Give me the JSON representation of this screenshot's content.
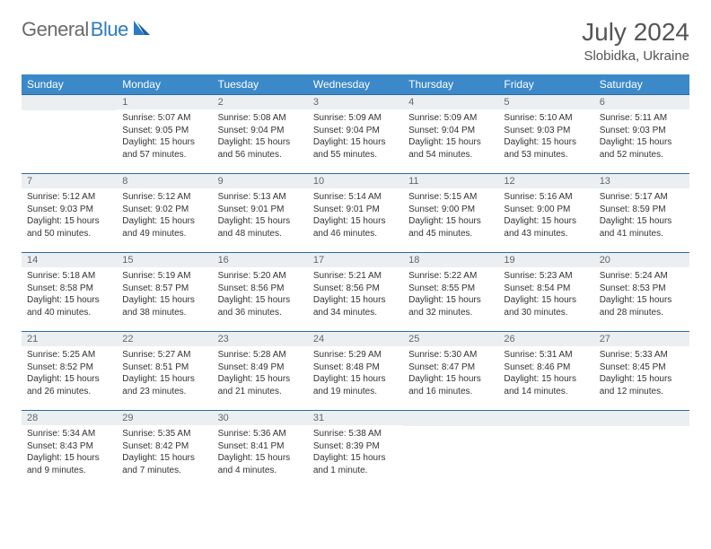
{
  "brand": {
    "part1": "General",
    "part2": "Blue"
  },
  "title": "July 2024",
  "location": "Slobidka, Ukraine",
  "colors": {
    "header_bg": "#3b89c9",
    "header_text": "#ffffff",
    "daybar_bg": "#eceff2",
    "daybar_text": "#666666",
    "border": "#2b6aa5",
    "logo_gray": "#6b6b6b",
    "logo_blue": "#2b7cc4"
  },
  "dayHeaders": [
    "Sunday",
    "Monday",
    "Tuesday",
    "Wednesday",
    "Thursday",
    "Friday",
    "Saturday"
  ],
  "weeks": [
    [
      {
        "n": "",
        "sr": "",
        "ss": "",
        "d1": "",
        "d2": ""
      },
      {
        "n": "1",
        "sr": "Sunrise: 5:07 AM",
        "ss": "Sunset: 9:05 PM",
        "d1": "Daylight: 15 hours",
        "d2": "and 57 minutes."
      },
      {
        "n": "2",
        "sr": "Sunrise: 5:08 AM",
        "ss": "Sunset: 9:04 PM",
        "d1": "Daylight: 15 hours",
        "d2": "and 56 minutes."
      },
      {
        "n": "3",
        "sr": "Sunrise: 5:09 AM",
        "ss": "Sunset: 9:04 PM",
        "d1": "Daylight: 15 hours",
        "d2": "and 55 minutes."
      },
      {
        "n": "4",
        "sr": "Sunrise: 5:09 AM",
        "ss": "Sunset: 9:04 PM",
        "d1": "Daylight: 15 hours",
        "d2": "and 54 minutes."
      },
      {
        "n": "5",
        "sr": "Sunrise: 5:10 AM",
        "ss": "Sunset: 9:03 PM",
        "d1": "Daylight: 15 hours",
        "d2": "and 53 minutes."
      },
      {
        "n": "6",
        "sr": "Sunrise: 5:11 AM",
        "ss": "Sunset: 9:03 PM",
        "d1": "Daylight: 15 hours",
        "d2": "and 52 minutes."
      }
    ],
    [
      {
        "n": "7",
        "sr": "Sunrise: 5:12 AM",
        "ss": "Sunset: 9:03 PM",
        "d1": "Daylight: 15 hours",
        "d2": "and 50 minutes."
      },
      {
        "n": "8",
        "sr": "Sunrise: 5:12 AM",
        "ss": "Sunset: 9:02 PM",
        "d1": "Daylight: 15 hours",
        "d2": "and 49 minutes."
      },
      {
        "n": "9",
        "sr": "Sunrise: 5:13 AM",
        "ss": "Sunset: 9:01 PM",
        "d1": "Daylight: 15 hours",
        "d2": "and 48 minutes."
      },
      {
        "n": "10",
        "sr": "Sunrise: 5:14 AM",
        "ss": "Sunset: 9:01 PM",
        "d1": "Daylight: 15 hours",
        "d2": "and 46 minutes."
      },
      {
        "n": "11",
        "sr": "Sunrise: 5:15 AM",
        "ss": "Sunset: 9:00 PM",
        "d1": "Daylight: 15 hours",
        "d2": "and 45 minutes."
      },
      {
        "n": "12",
        "sr": "Sunrise: 5:16 AM",
        "ss": "Sunset: 9:00 PM",
        "d1": "Daylight: 15 hours",
        "d2": "and 43 minutes."
      },
      {
        "n": "13",
        "sr": "Sunrise: 5:17 AM",
        "ss": "Sunset: 8:59 PM",
        "d1": "Daylight: 15 hours",
        "d2": "and 41 minutes."
      }
    ],
    [
      {
        "n": "14",
        "sr": "Sunrise: 5:18 AM",
        "ss": "Sunset: 8:58 PM",
        "d1": "Daylight: 15 hours",
        "d2": "and 40 minutes."
      },
      {
        "n": "15",
        "sr": "Sunrise: 5:19 AM",
        "ss": "Sunset: 8:57 PM",
        "d1": "Daylight: 15 hours",
        "d2": "and 38 minutes."
      },
      {
        "n": "16",
        "sr": "Sunrise: 5:20 AM",
        "ss": "Sunset: 8:56 PM",
        "d1": "Daylight: 15 hours",
        "d2": "and 36 minutes."
      },
      {
        "n": "17",
        "sr": "Sunrise: 5:21 AM",
        "ss": "Sunset: 8:56 PM",
        "d1": "Daylight: 15 hours",
        "d2": "and 34 minutes."
      },
      {
        "n": "18",
        "sr": "Sunrise: 5:22 AM",
        "ss": "Sunset: 8:55 PM",
        "d1": "Daylight: 15 hours",
        "d2": "and 32 minutes."
      },
      {
        "n": "19",
        "sr": "Sunrise: 5:23 AM",
        "ss": "Sunset: 8:54 PM",
        "d1": "Daylight: 15 hours",
        "d2": "and 30 minutes."
      },
      {
        "n": "20",
        "sr": "Sunrise: 5:24 AM",
        "ss": "Sunset: 8:53 PM",
        "d1": "Daylight: 15 hours",
        "d2": "and 28 minutes."
      }
    ],
    [
      {
        "n": "21",
        "sr": "Sunrise: 5:25 AM",
        "ss": "Sunset: 8:52 PM",
        "d1": "Daylight: 15 hours",
        "d2": "and 26 minutes."
      },
      {
        "n": "22",
        "sr": "Sunrise: 5:27 AM",
        "ss": "Sunset: 8:51 PM",
        "d1": "Daylight: 15 hours",
        "d2": "and 23 minutes."
      },
      {
        "n": "23",
        "sr": "Sunrise: 5:28 AM",
        "ss": "Sunset: 8:49 PM",
        "d1": "Daylight: 15 hours",
        "d2": "and 21 minutes."
      },
      {
        "n": "24",
        "sr": "Sunrise: 5:29 AM",
        "ss": "Sunset: 8:48 PM",
        "d1": "Daylight: 15 hours",
        "d2": "and 19 minutes."
      },
      {
        "n": "25",
        "sr": "Sunrise: 5:30 AM",
        "ss": "Sunset: 8:47 PM",
        "d1": "Daylight: 15 hours",
        "d2": "and 16 minutes."
      },
      {
        "n": "26",
        "sr": "Sunrise: 5:31 AM",
        "ss": "Sunset: 8:46 PM",
        "d1": "Daylight: 15 hours",
        "d2": "and 14 minutes."
      },
      {
        "n": "27",
        "sr": "Sunrise: 5:33 AM",
        "ss": "Sunset: 8:45 PM",
        "d1": "Daylight: 15 hours",
        "d2": "and 12 minutes."
      }
    ],
    [
      {
        "n": "28",
        "sr": "Sunrise: 5:34 AM",
        "ss": "Sunset: 8:43 PM",
        "d1": "Daylight: 15 hours",
        "d2": "and 9 minutes."
      },
      {
        "n": "29",
        "sr": "Sunrise: 5:35 AM",
        "ss": "Sunset: 8:42 PM",
        "d1": "Daylight: 15 hours",
        "d2": "and 7 minutes."
      },
      {
        "n": "30",
        "sr": "Sunrise: 5:36 AM",
        "ss": "Sunset: 8:41 PM",
        "d1": "Daylight: 15 hours",
        "d2": "and 4 minutes."
      },
      {
        "n": "31",
        "sr": "Sunrise: 5:38 AM",
        "ss": "Sunset: 8:39 PM",
        "d1": "Daylight: 15 hours",
        "d2": "and 1 minute."
      },
      {
        "n": "",
        "sr": "",
        "ss": "",
        "d1": "",
        "d2": ""
      },
      {
        "n": "",
        "sr": "",
        "ss": "",
        "d1": "",
        "d2": ""
      },
      {
        "n": "",
        "sr": "",
        "ss": "",
        "d1": "",
        "d2": ""
      }
    ]
  ]
}
